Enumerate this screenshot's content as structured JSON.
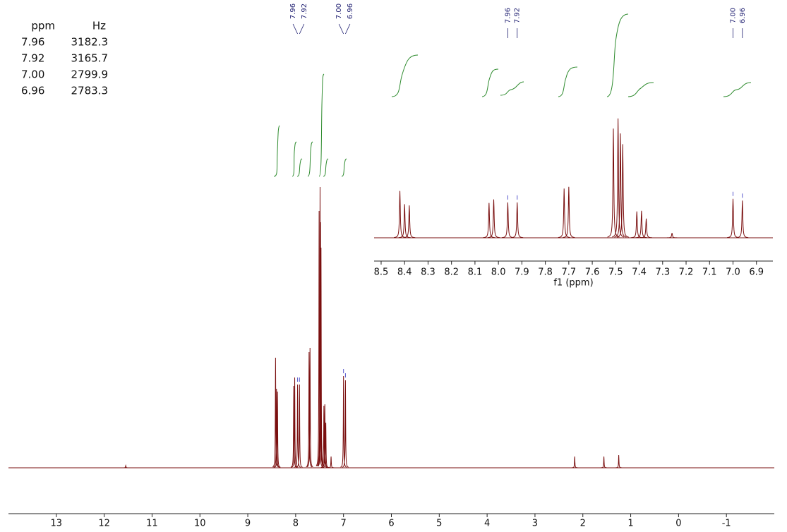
{
  "peak_table": {
    "headers": [
      "ppm",
      "Hz"
    ],
    "rows": [
      [
        "7.96",
        "3182.3"
      ],
      [
        "7.92",
        "3165.7"
      ],
      [
        "7.00",
        "2799.9"
      ],
      [
        "6.96",
        "2783.3"
      ]
    ]
  },
  "chart_data": [
    {
      "type": "spectrum",
      "color": "#7a0f0f",
      "x": [
        11.55,
        8.42,
        8.4,
        8.38,
        8.04,
        8.02,
        7.96,
        7.92,
        7.72,
        7.7,
        7.51,
        7.49,
        7.48,
        7.47,
        7.41,
        7.39,
        7.37,
        7.26,
        7.0,
        6.96,
        2.17,
        1.56,
        1.25
      ],
      "values": [
        0.8,
        39,
        28,
        27,
        29,
        32,
        29.5,
        29.5,
        41,
        42.5,
        91,
        99.5,
        87,
        78,
        22,
        22.5,
        16,
        4,
        32.5,
        31,
        4,
        4,
        4.5
      ],
      "xlim": [
        14,
        -2
      ],
      "ylim": [
        0,
        100
      ],
      "xticks": [
        13,
        12,
        11,
        10,
        9,
        8,
        7,
        6,
        5,
        4,
        3,
        2,
        1,
        0,
        -1
      ],
      "peak_labels": [
        7.96,
        7.92,
        {
          "value": 7,
          "label": "7.00"
        },
        6.96
      ]
    },
    {
      "type": "inset",
      "xlabel": "f1 (ppm)",
      "xlim": [
        8.53,
        6.83
      ],
      "ylim": [
        0,
        100
      ],
      "xticks": [
        8.5,
        8.4,
        8.3,
        8.2,
        8.1,
        {
          "value": 8,
          "label": "8.0"
        },
        7.9,
        7.8,
        7.7,
        7.6,
        7.5,
        7.4,
        7.3,
        7.2,
        7.1,
        {
          "value": 7,
          "label": "7.0"
        },
        6.9
      ],
      "peak_labels": [
        7.96,
        7.92,
        {
          "value": 7,
          "label": "7.00"
        },
        6.96
      ]
    }
  ]
}
